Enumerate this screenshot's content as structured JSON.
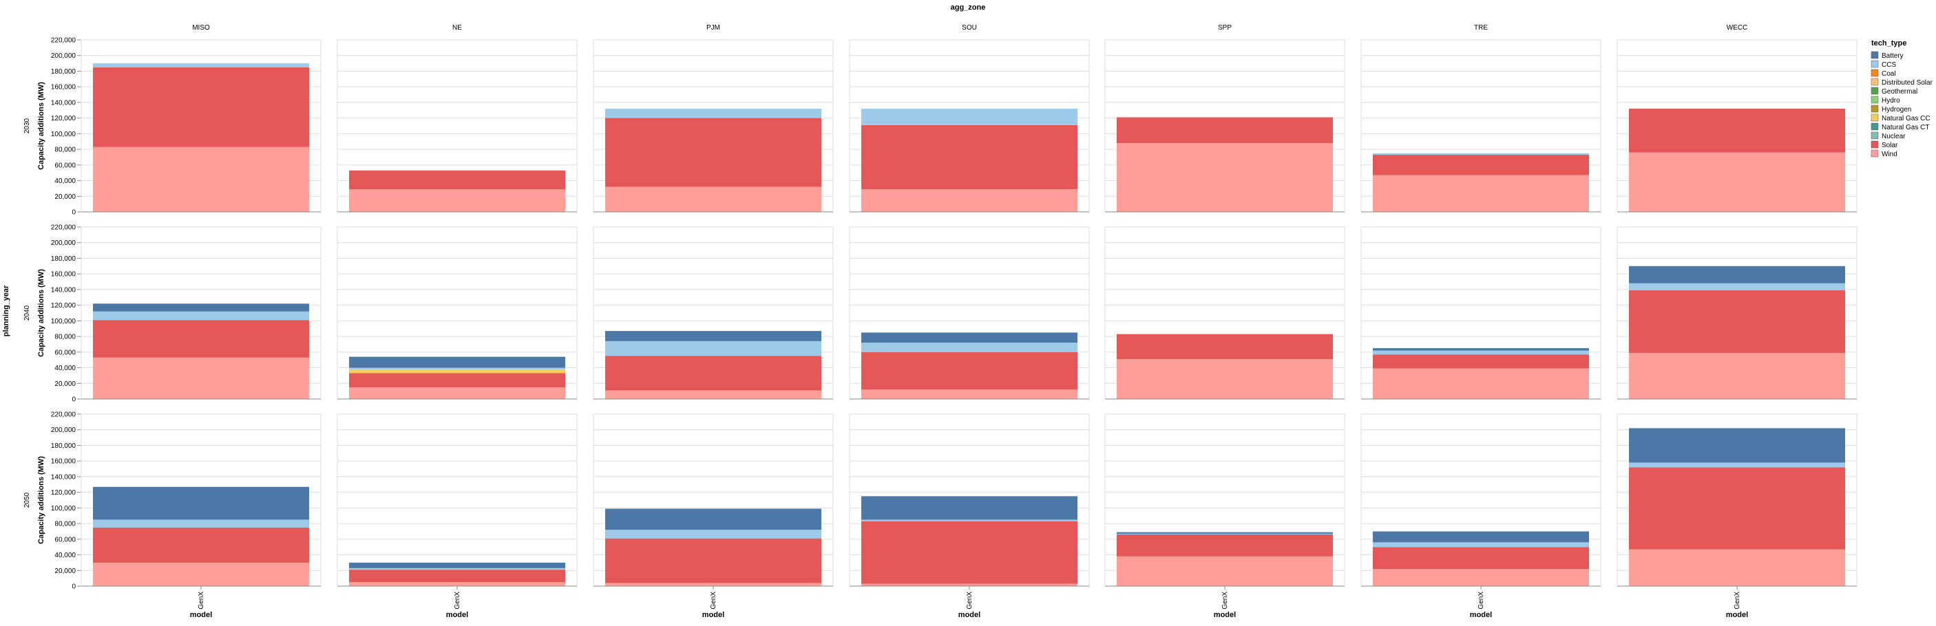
{
  "chart_data": {
    "type": "bar",
    "stacked": true,
    "facet_column_title": "agg_zone",
    "facet_row_title": "planning_year",
    "columns": [
      "MISO",
      "NE",
      "PJM",
      "SOU",
      "SPP",
      "TRE",
      "WECC"
    ],
    "rows": [
      "2030",
      "2040",
      "2050"
    ],
    "ylabel": "Capacity additions (MW)",
    "xlabel": "model",
    "categories": [
      "GenX"
    ],
    "ylim": [
      0,
      220000
    ],
    "yticks": [
      0,
      20000,
      40000,
      60000,
      80000,
      100000,
      120000,
      140000,
      160000,
      180000,
      200000,
      220000
    ],
    "ytick_labels": [
      "0",
      "20,000",
      "40,000",
      "60,000",
      "80,000",
      "100,000",
      "120,000",
      "140,000",
      "160,000",
      "180,000",
      "200,000",
      "220,000"
    ],
    "grid": true,
    "legend": {
      "title": "tech_type",
      "position": "right",
      "items": [
        {
          "name": "Battery",
          "color": "#4c78a8"
        },
        {
          "name": "CCS",
          "color": "#9ecae9"
        },
        {
          "name": "Coal",
          "color": "#f58518"
        },
        {
          "name": "Distributed Solar",
          "color": "#ffbf79"
        },
        {
          "name": "Geothermal",
          "color": "#54a24b"
        },
        {
          "name": "Hydro",
          "color": "#88d27a"
        },
        {
          "name": "Hydrogen",
          "color": "#b79a20"
        },
        {
          "name": "Natural Gas CC",
          "color": "#f2cf5b"
        },
        {
          "name": "Natural Gas CT",
          "color": "#439894"
        },
        {
          "name": "Nuclear",
          "color": "#83bcb6"
        },
        {
          "name": "Solar",
          "color": "#e45756"
        },
        {
          "name": "Wind",
          "color": "#ff9d98"
        }
      ]
    },
    "stack_order": [
      "Wind",
      "Solar",
      "Natural Gas CC",
      "CCS",
      "Battery"
    ],
    "panels": [
      {
        "row": "2030",
        "col": "MISO",
        "values": {
          "Wind": 83000,
          "Solar": 102000,
          "CCS": 5000
        }
      },
      {
        "row": "2030",
        "col": "NE",
        "values": {
          "Wind": 29000,
          "Solar": 24000
        }
      },
      {
        "row": "2030",
        "col": "PJM",
        "values": {
          "Wind": 32000,
          "Solar": 88000,
          "CCS": 12000
        }
      },
      {
        "row": "2030",
        "col": "SOU",
        "values": {
          "Wind": 29000,
          "Solar": 82000,
          "CCS": 21000
        }
      },
      {
        "row": "2030",
        "col": "SPP",
        "values": {
          "Wind": 88000,
          "Solar": 33000
        }
      },
      {
        "row": "2030",
        "col": "TRE",
        "values": {
          "Wind": 47000,
          "Solar": 26000,
          "CCS": 2000
        }
      },
      {
        "row": "2030",
        "col": "WECC",
        "values": {
          "Wind": 76000,
          "Solar": 56000
        }
      },
      {
        "row": "2040",
        "col": "MISO",
        "values": {
          "Wind": 53000,
          "Solar": 48000,
          "CCS": 11000,
          "Battery": 10000
        }
      },
      {
        "row": "2040",
        "col": "NE",
        "values": {
          "Wind": 15000,
          "Solar": 18000,
          "Natural Gas CC": 5000,
          "CCS": 2000,
          "Battery": 14000
        }
      },
      {
        "row": "2040",
        "col": "PJM",
        "values": {
          "Wind": 11000,
          "Solar": 44000,
          "CCS": 19000,
          "Battery": 13000
        }
      },
      {
        "row": "2040",
        "col": "SOU",
        "values": {
          "Wind": 12000,
          "Solar": 48000,
          "CCS": 12000,
          "Battery": 13000
        }
      },
      {
        "row": "2040",
        "col": "SPP",
        "values": {
          "Wind": 51000,
          "Solar": 32000
        }
      },
      {
        "row": "2040",
        "col": "TRE",
        "values": {
          "Wind": 39000,
          "Solar": 18000,
          "CCS": 5000,
          "Battery": 3000
        }
      },
      {
        "row": "2040",
        "col": "WECC",
        "values": {
          "Wind": 59000,
          "Solar": 80000,
          "CCS": 9000,
          "Battery": 22000
        }
      },
      {
        "row": "2050",
        "col": "MISO",
        "values": {
          "Wind": 30000,
          "Solar": 45000,
          "CCS": 10000,
          "Battery": 42000
        }
      },
      {
        "row": "2050",
        "col": "NE",
        "values": {
          "Wind": 5000,
          "Solar": 16000,
          "CCS": 2000,
          "Battery": 7000
        }
      },
      {
        "row": "2050",
        "col": "PJM",
        "values": {
          "Wind": 4000,
          "Solar": 57000,
          "CCS": 11000,
          "Battery": 27000
        }
      },
      {
        "row": "2050",
        "col": "SOU",
        "values": {
          "Wind": 3000,
          "Solar": 80000,
          "CCS": 2000,
          "Battery": 30000
        }
      },
      {
        "row": "2050",
        "col": "SPP",
        "values": {
          "Wind": 38000,
          "Solar": 28000,
          "CCS": 1000,
          "Battery": 2000
        }
      },
      {
        "row": "2050",
        "col": "TRE",
        "values": {
          "Wind": 22000,
          "Solar": 28000,
          "CCS": 6000,
          "Battery": 14000
        }
      },
      {
        "row": "2050",
        "col": "WECC",
        "values": {
          "Wind": 47000,
          "Solar": 105000,
          "CCS": 6000,
          "Battery": 44000
        }
      }
    ]
  }
}
